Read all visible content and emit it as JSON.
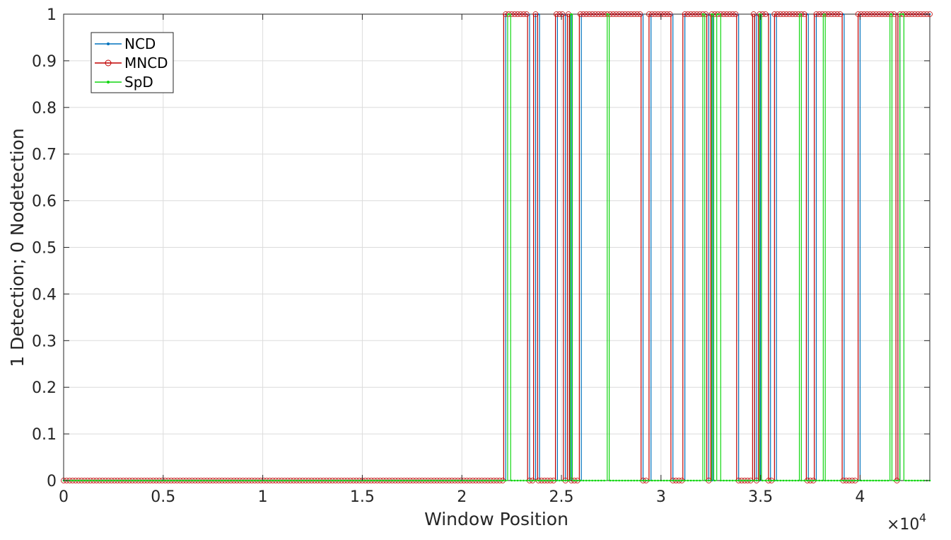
{
  "chart_data": {
    "type": "line",
    "title": "",
    "xlabel": "Window Position",
    "ylabel": "1 Detection; 0 Nodetection",
    "x_exponent": {
      "base": "×10",
      "power": "4"
    },
    "xlim": [
      0,
      43500
    ],
    "ylim": [
      0,
      1
    ],
    "x_ticks": [
      0,
      5000,
      10000,
      15000,
      20000,
      25000,
      30000,
      35000,
      40000
    ],
    "x_tick_labels": [
      "0",
      "0.5",
      "1",
      "1.5",
      "2",
      "2.5",
      "3",
      "3.5",
      "4"
    ],
    "y_ticks": [
      0,
      0.1,
      0.2,
      0.3,
      0.4,
      0.5,
      0.6,
      0.7,
      0.8,
      0.9,
      1
    ],
    "y_tick_labels": [
      "0",
      "0.1",
      "0.2",
      "0.3",
      "0.4",
      "0.5",
      "0.6",
      "0.7",
      "0.8",
      "0.9",
      "1"
    ],
    "grid": true,
    "legend_position": "top-left",
    "series": [
      {
        "name": "NCD",
        "color": "#0072BD",
        "marker": "dot",
        "steps": [
          [
            0,
            0
          ],
          [
            22200,
            1
          ],
          [
            23400,
            0
          ],
          [
            23700,
            1
          ],
          [
            23900,
            0
          ],
          [
            24800,
            1
          ],
          [
            25200,
            0
          ],
          [
            25400,
            1
          ],
          [
            25500,
            0
          ],
          [
            26000,
            1
          ],
          [
            29100,
            0
          ],
          [
            29500,
            1
          ],
          [
            30600,
            0
          ],
          [
            31200,
            1
          ],
          [
            32400,
            0
          ],
          [
            32600,
            1
          ],
          [
            33900,
            0
          ],
          [
            34700,
            1
          ],
          [
            34800,
            0
          ],
          [
            35000,
            1
          ],
          [
            35500,
            0
          ],
          [
            35800,
            1
          ],
          [
            37400,
            0
          ],
          [
            37800,
            1
          ],
          [
            39200,
            0
          ],
          [
            40000,
            1
          ],
          [
            41900,
            0
          ],
          [
            42000,
            1
          ],
          [
            43500,
            1
          ]
        ]
      },
      {
        "name": "MNCD",
        "color": "#C00000",
        "marker": "circle",
        "steps": [
          [
            0,
            0
          ],
          [
            22100,
            1
          ],
          [
            23300,
            0
          ],
          [
            23600,
            1
          ],
          [
            23800,
            0
          ],
          [
            24700,
            1
          ],
          [
            25100,
            0
          ],
          [
            25300,
            1
          ],
          [
            25400,
            0
          ],
          [
            25900,
            1
          ],
          [
            29000,
            0
          ],
          [
            29400,
            1
          ],
          [
            30500,
            0
          ],
          [
            31100,
            1
          ],
          [
            32300,
            0
          ],
          [
            32500,
            1
          ],
          [
            33800,
            0
          ],
          [
            34600,
            1
          ],
          [
            34700,
            0
          ],
          [
            34900,
            1
          ],
          [
            35400,
            0
          ],
          [
            35700,
            1
          ],
          [
            37300,
            0
          ],
          [
            37700,
            1
          ],
          [
            39100,
            0
          ],
          [
            39900,
            1
          ],
          [
            41800,
            0
          ],
          [
            41900,
            1
          ],
          [
            43500,
            1
          ]
        ]
      },
      {
        "name": "SpD",
        "color": "#11D611",
        "marker": "dot",
        "steps": [
          [
            0,
            0
          ],
          [
            22300,
            1
          ],
          [
            22450,
            0
          ],
          [
            25450,
            1
          ],
          [
            25550,
            0
          ],
          [
            27300,
            1
          ],
          [
            27400,
            0
          ],
          [
            32100,
            1
          ],
          [
            32200,
            0
          ],
          [
            32550,
            1
          ],
          [
            32650,
            0
          ],
          [
            32800,
            1
          ],
          [
            33000,
            0
          ],
          [
            34950,
            1
          ],
          [
            35050,
            0
          ],
          [
            36950,
            1
          ],
          [
            37050,
            0
          ],
          [
            38150,
            1
          ],
          [
            38250,
            0
          ],
          [
            41500,
            1
          ],
          [
            41600,
            0
          ],
          [
            42000,
            1
          ],
          [
            42200,
            0
          ],
          [
            43500,
            0
          ]
        ]
      }
    ]
  }
}
